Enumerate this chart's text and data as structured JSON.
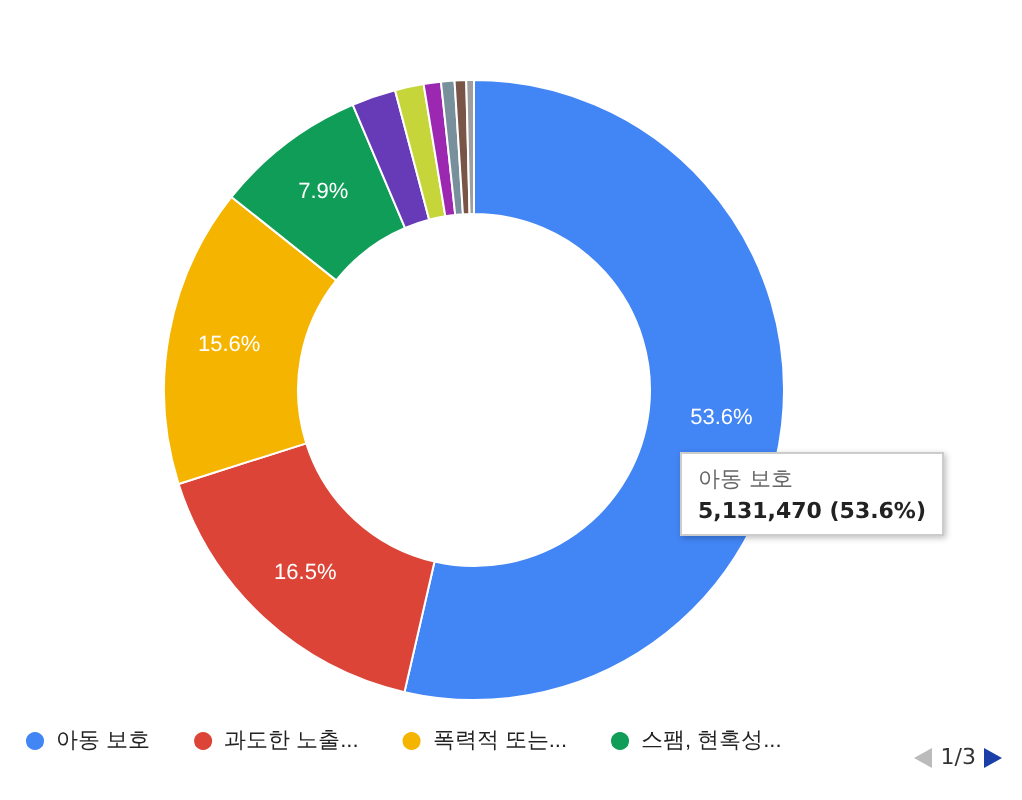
{
  "chart_data": {
    "type": "donut",
    "categories": [
      "아동 보호",
      "과도한 노출...",
      "폭력적 또는...",
      "스팸, 현혹성...",
      null,
      null,
      null,
      null,
      null,
      null
    ],
    "values": [
      53.6,
      16.5,
      15.6,
      7.9,
      2.3,
      1.5,
      0.9,
      0.7,
      0.6,
      0.4
    ],
    "colors": [
      "#4285f4",
      "#db4437",
      "#f4b400",
      "#0f9d58",
      "#673ab7",
      "#c6d63a",
      "#9c27b0",
      "#78909c",
      "#795548",
      "#9e9e9e"
    ],
    "value_labels": [
      "53.6%",
      "16.5%",
      "15.6%",
      "7.9%",
      null,
      null,
      null,
      null,
      null,
      null
    ],
    "annotations": [
      "아동 보호",
      "5,131,470 (53.6%)",
      "1/3"
    ],
    "legend": "bottom"
  }
}
